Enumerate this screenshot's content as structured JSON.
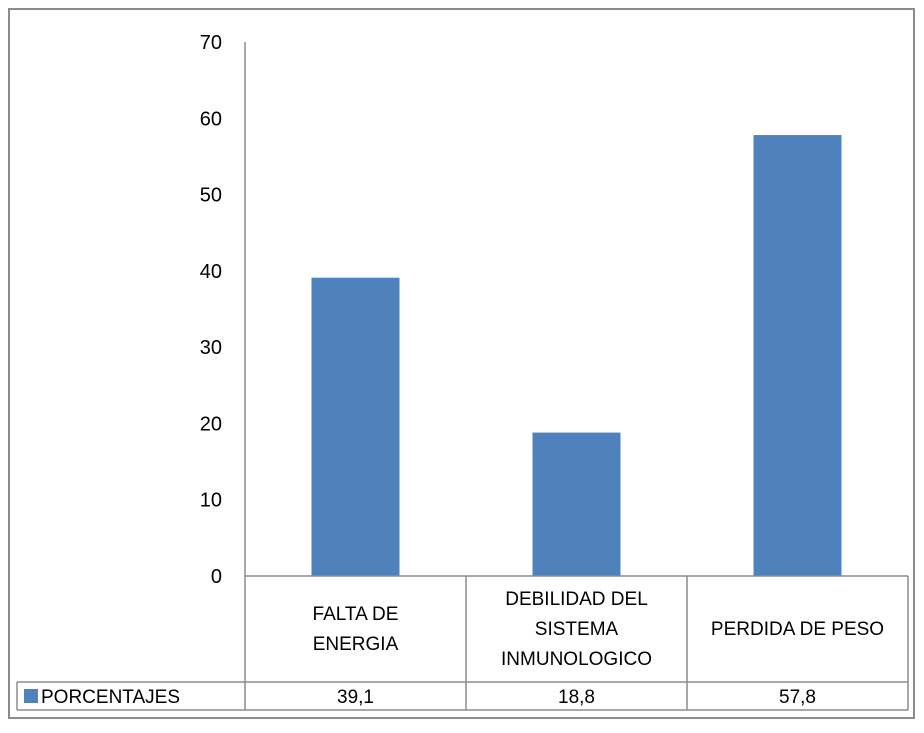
{
  "chart_data": {
    "type": "bar",
    "categories": [
      [
        "FALTA DE",
        "ENERGIA"
      ],
      [
        "DEBILIDAD DEL",
        "SISTEMA",
        "INMUNOLOGICO"
      ],
      [
        "PERDIDA DE PESO"
      ]
    ],
    "series": [
      {
        "name": "PORCENTAJES",
        "values": [
          39.1,
          18.8,
          57.8
        ],
        "value_labels": [
          "39,1",
          "18,8",
          "57,8"
        ],
        "color": "#4f81bd"
      }
    ],
    "yticks": [
      "0",
      "10",
      "20",
      "30",
      "40",
      "50",
      "60",
      "70"
    ],
    "ylim": [
      0,
      70
    ],
    "grid": false,
    "legend": "data-table-left",
    "title": "",
    "xlabel": "",
    "ylabel": ""
  }
}
